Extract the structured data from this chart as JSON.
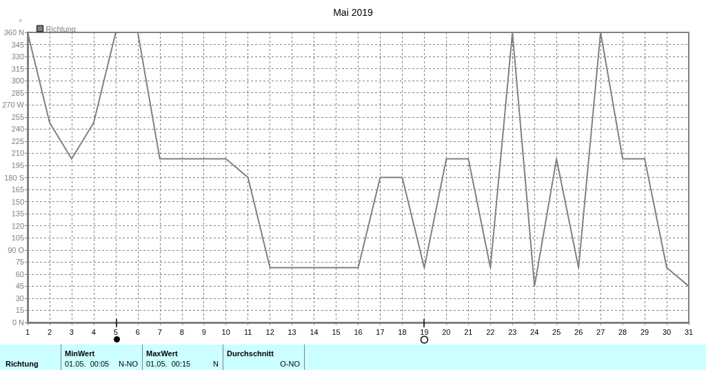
{
  "chart_data": {
    "type": "line",
    "title": "Mai 2019",
    "ylabel": "°",
    "x": [
      1,
      2,
      3,
      4,
      5,
      6,
      7,
      8,
      9,
      10,
      11,
      12,
      13,
      14,
      15,
      16,
      17,
      18,
      19,
      20,
      21,
      22,
      23,
      24,
      25,
      26,
      27,
      28,
      29,
      30,
      31
    ],
    "series": [
      {
        "name": "Richtung",
        "color": "#808080",
        "values": [
          360,
          248,
          203,
          248,
          360,
          360,
          203,
          203,
          203,
          203,
          180,
          68,
          68,
          68,
          68,
          68,
          180,
          180,
          68,
          203,
          203,
          68,
          360,
          45,
          203,
          68,
          360,
          203,
          203,
          68,
          45
        ]
      }
    ],
    "xlim": [
      1,
      31
    ],
    "xticks": [
      1,
      2,
      3,
      4,
      5,
      6,
      7,
      8,
      9,
      10,
      11,
      12,
      13,
      14,
      15,
      16,
      17,
      18,
      19,
      20,
      21,
      22,
      23,
      24,
      25,
      26,
      27,
      28,
      29,
      30,
      31
    ],
    "ylim": [
      0,
      360
    ],
    "yticks": [
      {
        "value": 0,
        "label": "0 N"
      },
      15,
      30,
      45,
      60,
      75,
      {
        "value": 90,
        "label": "90 O"
      },
      105,
      120,
      135,
      150,
      165,
      {
        "value": 180,
        "label": "180 S"
      },
      195,
      210,
      225,
      240,
      255,
      {
        "value": 270,
        "label": "270 W"
      },
      285,
      300,
      315,
      330,
      345,
      {
        "value": 360,
        "label": "360 N"
      }
    ],
    "grid": true,
    "legend": "top left",
    "line_style": "solid",
    "annotations": [
      "Richtung",
      "MinWert",
      "01.05.  00:05",
      "N-NO",
      "MaxWert",
      "01.05.  00:15",
      "N",
      "Durchschnitt",
      "O-NO"
    ]
  }
}
